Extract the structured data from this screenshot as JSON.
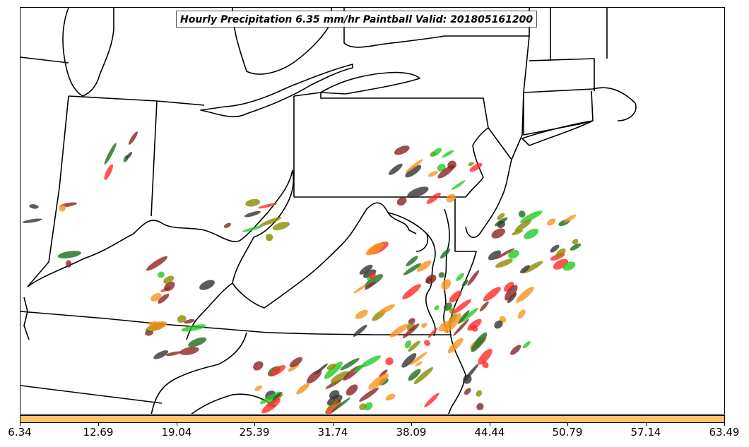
{
  "title": "Hourly Precipitation 6.35 mm/hr Paintball Valid: 201805161200",
  "colorbar": {
    "color": "#ffc26b",
    "ticks": [
      "6.34",
      "12.69",
      "19.04",
      "25.39",
      "31.74",
      "38.09",
      "44.44",
      "50.79",
      "57.14",
      "63.49"
    ]
  },
  "member_colors": [
    "#f7941d",
    "#8b2323",
    "#22cc22",
    "#1f6b1f",
    "#8b8b00",
    "#ff2a2a",
    "#333333"
  ]
}
